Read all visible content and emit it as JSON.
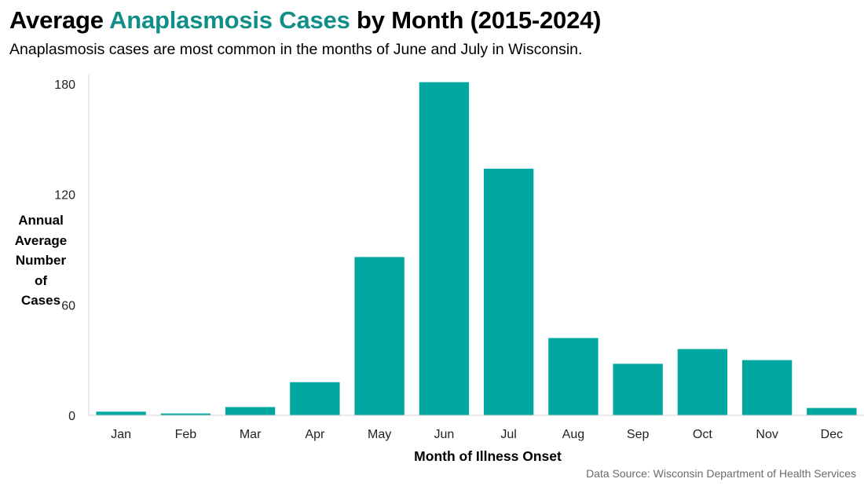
{
  "title": {
    "prefix": "Average ",
    "highlight": "Anaplasmosis Cases",
    "suffix": " by Month (2015-2024)"
  },
  "subtitle": "Anaplasmosis cases are most common in the months of June and July in Wisconsin.",
  "source": "Data Source: Wisconsin Department of Health Services",
  "colors": {
    "bar": "#00a6a0",
    "title_highlight": "#0f8f87",
    "axis": "#d4d4d4"
  },
  "chart_data": {
    "type": "bar",
    "title": "Average Anaplasmosis Cases by Month (2015-2024)",
    "ylabel": "Annual\nAverage\nNumber of\nCases",
    "xlabel": "Month of Illness Onset",
    "categories": [
      "Jan",
      "Feb",
      "Mar",
      "Apr",
      "May",
      "Jun",
      "Jul",
      "Aug",
      "Sep",
      "Oct",
      "Nov",
      "Dec"
    ],
    "values": [
      2,
      1,
      4.5,
      18,
      86,
      181,
      134,
      42,
      28,
      36,
      30,
      4
    ],
    "yticks": [
      0,
      60,
      120,
      180
    ],
    "ylim": [
      0,
      185
    ],
    "grid": false,
    "legend": "none"
  }
}
